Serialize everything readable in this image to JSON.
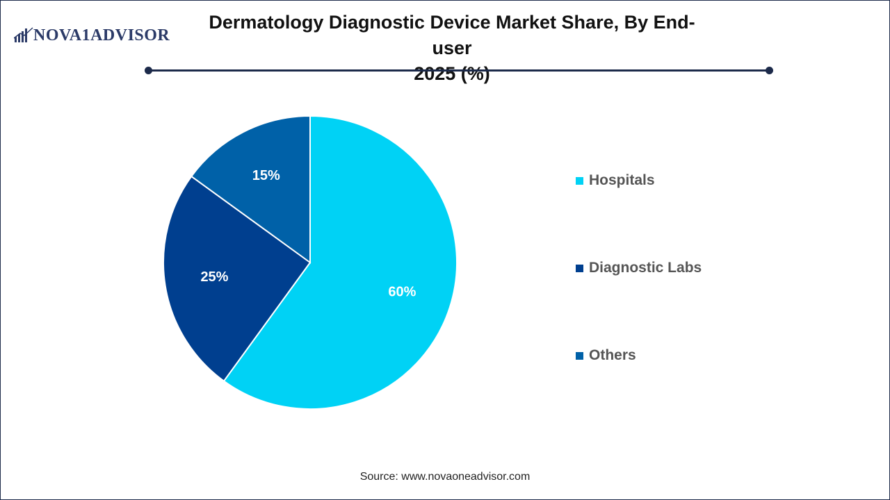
{
  "logo": {
    "text": "NOVA1ADVISOR",
    "icon": "bar-chart-icon"
  },
  "header": {
    "title_line1": "Dermatology Diagnostic Device Market Share, By End-user",
    "title_line2": "2025 (%)"
  },
  "colors": {
    "hospitals": "#00d2f5",
    "diagnostic_labs": "#003f8f",
    "others": "#0061a8",
    "rule": "#1c2a4a"
  },
  "chart_data": {
    "type": "pie",
    "title": "Dermatology Diagnostic Device Market Share, By End-user 2025 (%)",
    "categories": [
      "Hospitals",
      "Diagnostic Labs",
      "Others"
    ],
    "values": [
      60,
      25,
      15
    ],
    "data_labels": [
      "60%",
      "25%",
      "15%"
    ],
    "legend_position": "right",
    "start_angle": "top, clockwise"
  },
  "legend": {
    "items": [
      {
        "label": "Hospitals"
      },
      {
        "label": "Diagnostic Labs"
      },
      {
        "label": "Others"
      }
    ]
  },
  "footer": {
    "source": "Source: www.novaoneadvisor.com"
  }
}
